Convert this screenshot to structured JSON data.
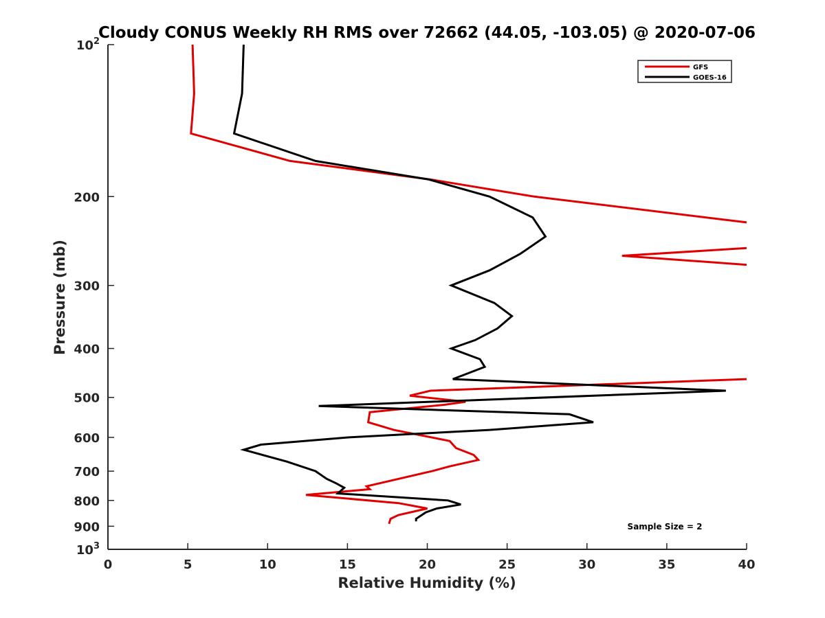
{
  "chart_data": {
    "type": "line",
    "title": "Cloudy CONUS Weekly RH RMS over 72662 (44.05, -103.05) @ 2020-07-06",
    "xlabel": "Relative Humidity (%)",
    "ylabel": "Pressure (mb)",
    "xlim": [
      0,
      40
    ],
    "ylim": [
      100,
      1000
    ],
    "y_scale": "log",
    "y_reversed": true,
    "grid": false,
    "legend_position": "top-right",
    "x_ticks": [
      "0",
      "5",
      "10",
      "15",
      "20",
      "25",
      "30",
      "35",
      "40"
    ],
    "y_ticks": [
      {
        "value": 100,
        "base": "10",
        "exp": "2"
      },
      {
        "value": 200,
        "label": "200"
      },
      {
        "value": 300,
        "label": "300"
      },
      {
        "value": 400,
        "label": "400"
      },
      {
        "value": 500,
        "label": "500"
      },
      {
        "value": 600,
        "label": "600"
      },
      {
        "value": 700,
        "label": "700"
      },
      {
        "value": 800,
        "label": "800"
      },
      {
        "value": 900,
        "label": "900"
      },
      {
        "value": 1000,
        "base": "10",
        "exp": "3"
      }
    ],
    "annotation": "Sample Size = 2",
    "series": [
      {
        "name": "GFS",
        "color": "#e00000",
        "points": [
          [
            5.3,
            100
          ],
          [
            5.4,
            125
          ],
          [
            5.2,
            150
          ],
          [
            11.4,
            170
          ],
          [
            20.2,
            185
          ],
          [
            26.7,
            200
          ],
          [
            40,
            225
          ],
          [
            null,
            null
          ],
          [
            40,
            253
          ],
          [
            32.2,
            262
          ],
          [
            40,
            273
          ],
          [
            null,
            null
          ],
          [
            40,
            460
          ],
          [
            20.2,
            485
          ],
          [
            18.9,
            496
          ],
          [
            22.4,
            510
          ],
          [
            21.1,
            517
          ],
          [
            16.4,
            535
          ],
          [
            16.3,
            560
          ],
          [
            17.9,
            580
          ],
          [
            21.4,
            610
          ],
          [
            21.8,
            630
          ],
          [
            22.9,
            650
          ],
          [
            23.2,
            665
          ],
          [
            21.4,
            685
          ],
          [
            20.3,
            700
          ],
          [
            16.2,
            750
          ],
          [
            16.4,
            760
          ],
          [
            12.4,
            780
          ],
          [
            18.2,
            810
          ],
          [
            20.0,
            830
          ],
          [
            18.2,
            855
          ],
          [
            17.7,
            870
          ],
          [
            17.6,
            890
          ]
        ]
      },
      {
        "name": "GOES-16",
        "color": "#000000",
        "points": [
          [
            8.5,
            100
          ],
          [
            8.4,
            125
          ],
          [
            7.9,
            150
          ],
          [
            13.0,
            170
          ],
          [
            20.1,
            185
          ],
          [
            23.9,
            200
          ],
          [
            26.6,
            220
          ],
          [
            27.4,
            240
          ],
          [
            25.8,
            260
          ],
          [
            23.9,
            280
          ],
          [
            21.5,
            300
          ],
          [
            24.2,
            325
          ],
          [
            25.3,
            345
          ],
          [
            24.4,
            365
          ],
          [
            23.0,
            385
          ],
          [
            21.5,
            400
          ],
          [
            23.3,
            420
          ],
          [
            23.6,
            435
          ],
          [
            21.6,
            460
          ],
          [
            38.7,
            485
          ],
          [
            13.2,
            520
          ],
          [
            28.9,
            540
          ],
          [
            30.4,
            560
          ],
          [
            23.9,
            580
          ],
          [
            15.1,
            600
          ],
          [
            9.6,
            620
          ],
          [
            8.5,
            635
          ],
          [
            11.2,
            670
          ],
          [
            13.0,
            700
          ],
          [
            13.7,
            725
          ],
          [
            14.3,
            740
          ],
          [
            14.8,
            755
          ],
          [
            14.4,
            775
          ],
          [
            21.3,
            800
          ],
          [
            22.1,
            815
          ],
          [
            20.6,
            830
          ],
          [
            19.9,
            845
          ],
          [
            19.3,
            870
          ],
          [
            19.3,
            880
          ]
        ]
      }
    ]
  }
}
